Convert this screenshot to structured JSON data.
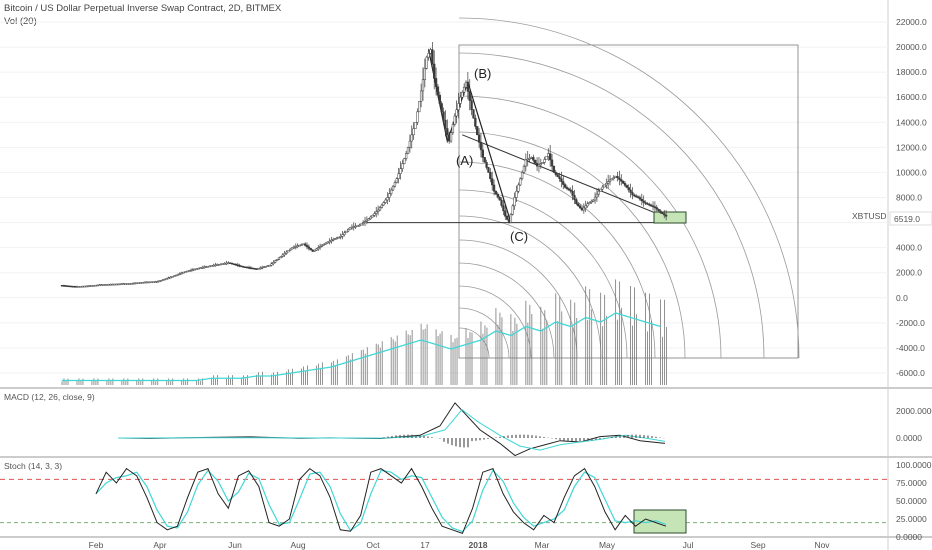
{
  "header": {
    "title": "Bitcoin / US Dollar Perpetual Inverse Swap Contract, 2D, BITMEX",
    "volume_label": "Vol (20)"
  },
  "chart_data": [
    {
      "type": "candlestick",
      "symbol": "XBTUSD",
      "last_price": "6519.0",
      "y_ticks": [
        "22000.0",
        "20000.0",
        "18000.0",
        "16000.0",
        "14000.0",
        "12000.0",
        "10000.0",
        "8000.0",
        "6000.0",
        "4000.0",
        "2000.0",
        "0.0",
        "-2000.0",
        "-4000.0",
        "-6000.0"
      ],
      "y_tick_values": [
        22000,
        20000,
        18000,
        16000,
        14000,
        12000,
        10000,
        8000,
        6000,
        4000,
        2000,
        0,
        -2000,
        -4000,
        -6000
      ],
      "x_ticks": [
        "Feb",
        "Apr",
        "Jun",
        "Aug",
        "Oct",
        "17",
        "2018",
        "Mar",
        "May",
        "Jul",
        "Sep",
        "Nov"
      ],
      "wave_labels": [
        "(A)",
        "(B)",
        "(C)"
      ],
      "price_path": [
        [
          0,
          1000
        ],
        [
          8,
          900
        ],
        [
          15,
          950
        ],
        [
          22,
          1050
        ],
        [
          30,
          1100
        ],
        [
          38,
          1150
        ],
        [
          45,
          1250
        ],
        [
          52,
          1300
        ],
        [
          60,
          1700
        ],
        [
          67,
          2100
        ],
        [
          75,
          2400
        ],
        [
          82,
          2600
        ],
        [
          90,
          2800
        ],
        [
          97,
          2500
        ],
        [
          105,
          2300
        ],
        [
          112,
          2600
        ],
        [
          118,
          3300
        ],
        [
          124,
          4000
        ],
        [
          130,
          4300
        ],
        [
          135,
          3700
        ],
        [
          140,
          4200
        ],
        [
          145,
          4600
        ],
        [
          150,
          4900
        ],
        [
          155,
          5600
        ],
        [
          160,
          5800
        ],
        [
          165,
          6300
        ],
        [
          170,
          7000
        ],
        [
          175,
          8000
        ],
        [
          180,
          9500
        ],
        [
          185,
          11500
        ],
        [
          190,
          14000
        ],
        [
          193,
          16500
        ],
        [
          196,
          19200
        ],
        [
          198,
          19800
        ],
        [
          200,
          17500
        ],
        [
          203,
          15500
        ],
        [
          206,
          13500
        ],
        [
          208,
          12500
        ],
        [
          211,
          14500
        ],
        [
          214,
          16000
        ],
        [
          217,
          17200
        ],
        [
          220,
          15000
        ],
        [
          223,
          13000
        ],
        [
          226,
          11200
        ],
        [
          229,
          10000
        ],
        [
          232,
          8500
        ],
        [
          235,
          7800
        ],
        [
          238,
          6500
        ],
        [
          240,
          6000
        ],
        [
          243,
          8000
        ],
        [
          246,
          9500
        ],
        [
          249,
          11000
        ],
        [
          252,
          11200
        ],
        [
          255,
          10500
        ],
        [
          258,
          10800
        ],
        [
          261,
          11500
        ],
        [
          264,
          10000
        ],
        [
          267,
          9500
        ],
        [
          270,
          8800
        ],
        [
          273,
          8500
        ],
        [
          276,
          7500
        ],
        [
          279,
          7000
        ],
        [
          282,
          7500
        ],
        [
          285,
          7800
        ],
        [
          288,
          8500
        ],
        [
          291,
          9000
        ],
        [
          294,
          9400
        ],
        [
          297,
          9700
        ],
        [
          300,
          9300
        ],
        [
          303,
          8800
        ],
        [
          306,
          8200
        ],
        [
          309,
          8000
        ],
        [
          312,
          7600
        ],
        [
          315,
          7400
        ],
        [
          318,
          7200
        ],
        [
          321,
          6800
        ],
        [
          324,
          6500
        ]
      ],
      "triangle_resistance": [
        [
          214,
          13000
        ],
        [
          330,
          6000
        ]
      ],
      "triangle_support": [
        [
          163,
          6000
        ],
        [
          330,
          6000
        ]
      ]
    },
    {
      "type": "bar",
      "name": "Vol (20)",
      "values": [
        0.1,
        0.1,
        0.1,
        0.1,
        0.1,
        0.1,
        0.1,
        0.1,
        0.1,
        0.1,
        0.15,
        0.15,
        0.15,
        0.2,
        0.2,
        0.25,
        0.3,
        0.35,
        0.4,
        0.5,
        0.6,
        0.7,
        0.8,
        0.9,
        1.0,
        0.9,
        0.8,
        0.9,
        1.0,
        1.2,
        1.1,
        1.3,
        1.2,
        1.4,
        1.3,
        1.5,
        1.4,
        1.6,
        1.5,
        1.4,
        1.3
      ]
    },
    {
      "type": "line",
      "name": "MACD (12, 26, close, 9)",
      "y_ticks": [
        "2000.0000",
        "0.0000"
      ],
      "y_tick_values": [
        2000,
        0
      ]
    },
    {
      "type": "line",
      "name": "Stoch (14, 3, 3)",
      "y_ticks": [
        "100.0000",
        "75.0000",
        "50.0000",
        "25.0000",
        "0.0000"
      ],
      "y_tick_values": [
        100,
        75,
        50,
        25,
        0
      ],
      "levels": [
        80,
        20
      ]
    }
  ],
  "colors": {
    "candle": "#3a3a3a",
    "signal": "#41d6d6",
    "box_fill": "#c5e5b6",
    "upper_level": "#e05252",
    "lower_level": "#7bb07b",
    "grid": "#f2f2f2"
  }
}
